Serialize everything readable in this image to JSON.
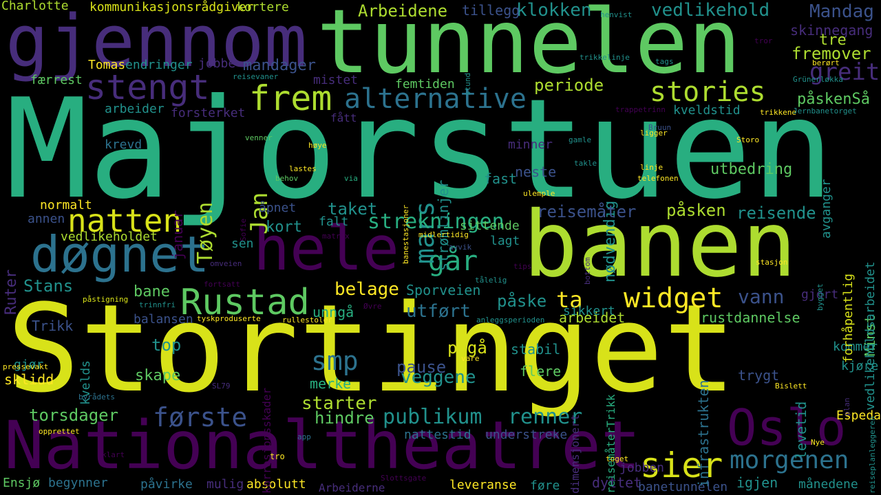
{
  "palette": {
    "purple": "#440154",
    "indigo": "#472d7b",
    "blue": "#3b528b",
    "slate": "#2c728e",
    "teal": "#21918c",
    "green": "#28ae80",
    "mint": "#5ec962",
    "lime": "#addc30",
    "yellow": "#d8e219",
    "gold": "#fde725"
  },
  "words": [
    {
      "id": "majorstuen",
      "text": "Majorstuen",
      "color": "green",
      "rot": 0
    },
    {
      "id": "stortinget",
      "text": "Stortinget",
      "color": "yellow",
      "rot": 0
    },
    {
      "id": "banen",
      "text": "banen",
      "color": "lime",
      "rot": 0
    },
    {
      "id": "tunnelen",
      "text": "tunnelen",
      "color": "mint",
      "rot": 0
    },
    {
      "id": "gjennom",
      "text": "gjennom",
      "color": "indigo",
      "rot": 0
    },
    {
      "id": "nationaltheatret",
      "text": "Nationaltheatret",
      "color": "purple",
      "rot": 0
    },
    {
      "id": "hele",
      "text": "hele",
      "color": "purple",
      "rot": 0
    },
    {
      "id": "dognet",
      "text": "døgnet",
      "color": "slate",
      "rot": 0
    },
    {
      "id": "oslo",
      "text": "Oslo",
      "color": "purple",
      "rot": 0
    },
    {
      "id": "rustad",
      "text": "Rustad",
      "color": "mint",
      "rot": 0
    },
    {
      "id": "stengt",
      "text": "stengt",
      "color": "indigo",
      "rot": 0
    },
    {
      "id": "frem",
      "text": "frem",
      "color": "lime",
      "rot": 0
    },
    {
      "id": "natten",
      "text": "natten",
      "color": "yellow",
      "rot": 0
    },
    {
      "id": "sier",
      "text": "sier",
      "color": "yellow",
      "rot": 0
    },
    {
      "id": "widget",
      "text": "widget",
      "color": "gold",
      "rot": 0
    },
    {
      "id": "alternative",
      "text": "alternative",
      "color": "slate",
      "rot": 0
    },
    {
      "id": "stories",
      "text": "stories",
      "color": "lime",
      "rot": 0
    },
    {
      "id": "gar",
      "text": "går",
      "color": "green",
      "rot": 0
    },
    {
      "id": "morgenen",
      "text": "morgenen",
      "color": "slate",
      "rot": 0
    },
    {
      "id": "forste",
      "text": "første",
      "color": "blue",
      "rot": 0
    },
    {
      "id": "smp",
      "text": "smp",
      "color": "slate",
      "rot": 0
    },
    {
      "id": "mars",
      "text": "mars",
      "color": "teal",
      "rot": -90
    },
    {
      "id": "ta",
      "text": "ta",
      "color": "gold",
      "rot": 0
    },
    {
      "id": "strekningen",
      "text": "strekningen",
      "color": "green",
      "rot": 0
    },
    {
      "id": "publikum",
      "text": "publikum",
      "color": "teal",
      "rot": 0
    },
    {
      "id": "renner",
      "text": "renner",
      "color": "teal",
      "rot": 0
    },
    {
      "id": "jan",
      "text": "Jan",
      "color": "lime",
      "rot": -90
    },
    {
      "id": "toyen",
      "text": "Tøyen",
      "color": "lime",
      "rot": -90
    },
    {
      "id": "greit",
      "text": "greit",
      "color": "indigo",
      "rot": 0
    },
    {
      "id": "arbeidene",
      "text": "Arbeidene",
      "color": "lime",
      "rot": 0
    },
    {
      "id": "klokken",
      "text": "klokken",
      "color": "teal",
      "rot": 0
    },
    {
      "id": "vedlikehold",
      "text": "vedlikehold",
      "color": "teal",
      "rot": 0
    },
    {
      "id": "mandag",
      "text": "Mandag",
      "color": "blue",
      "rot": 0
    },
    {
      "id": "fremover",
      "text": "fremover",
      "color": "lime",
      "rot": 0
    },
    {
      "id": "periode",
      "text": "periode",
      "color": "lime",
      "rot": 0
    },
    {
      "id": "paskensa",
      "text": "påskenSå",
      "color": "mint",
      "rot": 0
    },
    {
      "id": "mandager",
      "text": "mandager",
      "color": "blue",
      "rot": 0
    },
    {
      "id": "skinnegang",
      "text": "skinnegang",
      "color": "indigo",
      "rot": 0
    },
    {
      "id": "tre",
      "text": "tre",
      "color": "lime",
      "rot": 0
    },
    {
      "id": "charlotte",
      "text": "Charlotte",
      "color": "lime",
      "rot": 0
    },
    {
      "id": "kommunikasjon",
      "text": "kommunikasjonsrådgiver",
      "color": "yellow",
      "rot": 0
    },
    {
      "id": "kortere",
      "text": "kortere",
      "color": "lime",
      "rot": 0
    },
    {
      "id": "tillegg",
      "text": "tillegg",
      "color": "blue",
      "rot": 0
    },
    {
      "id": "tomas",
      "text": "Tomas",
      "color": "gold",
      "rot": 0
    },
    {
      "id": "endringer",
      "text": "endringer",
      "color": "teal",
      "rot": 0
    },
    {
      "id": "jobbe",
      "text": "jobbe",
      "color": "indigo",
      "rot": 0
    },
    {
      "id": "farrest",
      "text": "færrest",
      "color": "mint",
      "rot": 0
    },
    {
      "id": "mistet",
      "text": "mistet",
      "color": "indigo",
      "rot": 0
    },
    {
      "id": "femtiden",
      "text": "femtiden",
      "color": "mint",
      "rot": 0
    },
    {
      "id": "arbeider",
      "text": "arbeider",
      "color": "teal",
      "rot": 0
    },
    {
      "id": "forsterket",
      "text": "forsterket",
      "color": "indigo",
      "rot": 0
    },
    {
      "id": "fatt",
      "text": "fått",
      "color": "indigo",
      "rot": 0
    },
    {
      "id": "kveldstid",
      "text": "kveldstid",
      "color": "teal",
      "rot": 0
    },
    {
      "id": "krevd",
      "text": "krevd",
      "color": "slate",
      "rot": 0
    },
    {
      "id": "fast",
      "text": "fast",
      "color": "teal",
      "rot": 0
    },
    {
      "id": "neste",
      "text": "neste",
      "color": "blue",
      "rot": 0
    },
    {
      "id": "minner",
      "text": "minner",
      "color": "indigo",
      "rot": 0
    },
    {
      "id": "nodvendig",
      "text": "nødvendig",
      "color": "teal",
      "rot": -90
    },
    {
      "id": "stromlinjer",
      "text": "strømlinjer",
      "color": "teal",
      "rot": -90
    },
    {
      "id": "utbedring",
      "text": "utbedring",
      "color": "mint",
      "rot": 0
    },
    {
      "id": "avganger",
      "text": "avganger",
      "color": "teal",
      "rot": -90
    },
    {
      "id": "taket",
      "text": "taket",
      "color": "teal",
      "rot": 0
    },
    {
      "id": "apnet",
      "text": "åpnet",
      "color": "blue",
      "rot": 0
    },
    {
      "id": "normalt",
      "text": "normalt",
      "color": "gold",
      "rot": 0
    },
    {
      "id": "annen",
      "text": "annen",
      "color": "blue",
      "rot": 0
    },
    {
      "id": "kort",
      "text": "kort",
      "color": "teal",
      "rot": 0
    },
    {
      "id": "falt",
      "text": "falt",
      "color": "teal",
      "rot": 0
    },
    {
      "id": "sittende",
      "text": "sittende",
      "color": "mint",
      "rot": 0
    },
    {
      "id": "reisemater",
      "text": "reisemåter",
      "color": "blue",
      "rot": 0
    },
    {
      "id": "pasken",
      "text": "påsken",
      "color": "lime",
      "rot": 0
    },
    {
      "id": "reisende",
      "text": "reisende",
      "color": "teal",
      "rot": 0
    },
    {
      "id": "vedlikeholdet",
      "text": "vedlikeholdet",
      "color": "lime",
      "rot": 0
    },
    {
      "id": "sen",
      "text": "sen",
      "color": "teal",
      "rot": 0
    },
    {
      "id": "lagt",
      "text": "lagt",
      "color": "teal",
      "rot": 0
    },
    {
      "id": "ruter",
      "text": "Ruter",
      "color": "indigo",
      "rot": -90
    },
    {
      "id": "stans",
      "text": "Stans",
      "color": "teal",
      "rot": 0
    },
    {
      "id": "bane",
      "text": "bane",
      "color": "mint",
      "rot": 0
    },
    {
      "id": "belage",
      "text": "belage",
      "color": "gold",
      "rot": 0
    },
    {
      "id": "sporveien",
      "text": "Sporveien",
      "color": "teal",
      "rot": 0
    },
    {
      "id": "paske",
      "text": "påske",
      "color": "teal",
      "rot": 0
    },
    {
      "id": "vann",
      "text": "vann",
      "color": "blue",
      "rot": 0
    },
    {
      "id": "balansen",
      "text": "balansen",
      "color": "blue",
      "rot": 0
    },
    {
      "id": "unnga",
      "text": "unngå",
      "color": "green",
      "rot": 0
    },
    {
      "id": "utfort",
      "text": "utført",
      "color": "slate",
      "rot": 0
    },
    {
      "id": "sikkert",
      "text": "sikkert",
      "color": "teal",
      "rot": 0
    },
    {
      "id": "arbeidet",
      "text": "arbeidet",
      "color": "lime",
      "rot": 0
    },
    {
      "id": "rustdannelse",
      "text": "rustdannelse",
      "color": "mint",
      "rot": 0
    },
    {
      "id": "minst",
      "text": "Minst",
      "color": "mint",
      "rot": -90
    },
    {
      "id": "trikk",
      "text": "Trikk",
      "color": "blue",
      "rot": 0
    },
    {
      "id": "top",
      "text": "top",
      "color": "teal",
      "rot": 0
    },
    {
      "id": "paga",
      "text": "pågå",
      "color": "yellow",
      "rot": 0
    },
    {
      "id": "stabil",
      "text": "stabil",
      "color": "teal",
      "rot": 0
    },
    {
      "id": "pause",
      "text": "pause",
      "color": "blue",
      "rot": 0
    },
    {
      "id": "veggene",
      "text": "veggene",
      "color": "teal",
      "rot": 0
    },
    {
      "id": "skape",
      "text": "skape",
      "color": "mint",
      "rot": 0
    },
    {
      "id": "flere",
      "text": "flere",
      "color": "mint",
      "rot": 0
    },
    {
      "id": "starter",
      "text": "starter",
      "color": "lime",
      "rot": 0
    },
    {
      "id": "merke",
      "text": "merke",
      "color": "green",
      "rot": 0
    },
    {
      "id": "hindre",
      "text": "hindre",
      "color": "mint",
      "rot": 0
    },
    {
      "id": "torsdager",
      "text": "torsdager",
      "color": "mint",
      "rot": 0
    },
    {
      "id": "sklidd",
      "text": "sklidd",
      "color": "gold",
      "rot": 0
    },
    {
      "id": "gjor",
      "text": "gjør",
      "color": "teal",
      "rot": 0
    },
    {
      "id": "trygt",
      "text": "trygt",
      "color": "blue",
      "rot": 0
    },
    {
      "id": "kjore",
      "text": "kjøre",
      "color": "teal",
      "rot": 0
    },
    {
      "id": "kommer",
      "text": "kommer",
      "color": "teal",
      "rot": 0
    },
    {
      "id": "espedal",
      "text": "Espedal",
      "color": "gold",
      "rot": 0
    },
    {
      "id": "nattestid",
      "text": "nattestid",
      "color": "slate",
      "rot": 0
    },
    {
      "id": "understreke",
      "text": "understreke",
      "color": "blue",
      "rot": 0
    },
    {
      "id": "jobben",
      "text": "jobben",
      "color": "indigo",
      "rot": 0
    },
    {
      "id": "dyttet",
      "text": "dyttet",
      "color": "indigo",
      "rot": 0
    },
    {
      "id": "igjen",
      "text": "igjen",
      "color": "teal",
      "rot": 0
    },
    {
      "id": "manedene",
      "text": "månedene",
      "color": "teal",
      "rot": 0
    },
    {
      "id": "ensjo",
      "text": "Ensjø",
      "color": "mint",
      "rot": 0
    },
    {
      "id": "begynner",
      "text": "begynner",
      "color": "slate",
      "rot": 0
    },
    {
      "id": "pavirke",
      "text": "påvirke",
      "color": "slate",
      "rot": 0
    },
    {
      "id": "mulig",
      "text": "mulig",
      "color": "indigo",
      "rot": 0
    },
    {
      "id": "absolutt",
      "text": "absolutt",
      "color": "gold",
      "rot": 0
    },
    {
      "id": "arbeiderne",
      "text": "Arbeiderne",
      "color": "indigo",
      "rot": 0
    },
    {
      "id": "leveranse",
      "text": "leveranse",
      "color": "gold",
      "rot": 0
    },
    {
      "id": "fore",
      "text": "føre",
      "color": "teal",
      "rot": 0
    },
    {
      "id": "banetunnelen",
      "text": "banetunnelen",
      "color": "blue",
      "rot": 0
    },
    {
      "id": "gjort",
      "text": "gjort",
      "color": "indigo",
      "rot": 0
    },
    {
      "id": "levetid",
      "text": "levetid",
      "color": "teal",
      "rot": -90
    },
    {
      "id": "forhapentlig",
      "text": "forhåpentlig",
      "color": "yellow",
      "rot": -90
    },
    {
      "id": "vedlikeholdsarbeidet",
      "text": "vedlikeholdsarbeidet",
      "color": "teal",
      "rot": -90
    },
    {
      "id": "infrastrukten",
      "text": "infrastrukten",
      "color": "slate",
      "rot": -90
    },
    {
      "id": "reisematertrikk",
      "text": "reisemåterTrikk",
      "color": "green",
      "rot": -90
    },
    {
      "id": "dimensjonert",
      "text": "dimensjonert",
      "color": "indigo",
      "rot": -90
    },
    {
      "id": "korrosjonsskader",
      "text": "korrosjonsskader",
      "color": "purple",
      "rot": -90
    },
    {
      "id": "kvelds",
      "text": "kvelds",
      "color": "teal",
      "rot": -90
    },
    {
      "id": "januar",
      "text": "januar",
      "color": "purple",
      "rot": -90
    },
    {
      "id": "pressevakt",
      "text": "pressevakt",
      "color": "gold",
      "rot": 0
    },
    {
      "id": "opprettet",
      "text": "opprettet",
      "color": "gold",
      "rot": 0
    },
    {
      "id": "byradets",
      "text": "byrådets",
      "color": "slate",
      "rot": 0
    },
    {
      "id": "sl79",
      "text": "SL79",
      "color": "indigo",
      "rot": 0
    },
    {
      "id": "klart",
      "text": "klart",
      "color": "purple",
      "rot": 0
    },
    {
      "id": "app",
      "text": "app",
      "color": "slate",
      "rot": 0
    },
    {
      "id": "tro",
      "text": "tro",
      "color": "gold",
      "rot": 0
    },
    {
      "id": "toget",
      "text": "toget",
      "color": "gold",
      "rot": 0
    },
    {
      "id": "nye",
      "text": "Nye",
      "color": "gold",
      "rot": 0
    },
    {
      "id": "slottsgate",
      "text": "Slottsgate",
      "color": "purple",
      "rot": 0
    },
    {
      "id": "reiseplanleggeren",
      "text": "reiseplanleggeren",
      "color": "teal",
      "rot": -90
    },
    {
      "id": "plan",
      "text": "plan",
      "color": "indigo",
      "rot": -90
    },
    {
      "id": "bislett",
      "text": "Bislett",
      "color": "gold",
      "rot": 0
    },
    {
      "id": "vare",
      "text": "vare",
      "color": "gold",
      "rot": 0
    },
    {
      "id": "anleggsperioden",
      "text": "anleggsperioden",
      "color": "teal",
      "rot": 0
    },
    {
      "id": "rullestoler",
      "text": "rullestoler",
      "color": "gold",
      "rot": 0
    },
    {
      "id": "ovre",
      "text": "Øvre",
      "color": "purple",
      "rot": 0
    },
    {
      "id": "tyskproduserte",
      "text": "tyskproduserte",
      "color": "gold",
      "rot": 0
    },
    {
      "id": "trinnfri",
      "text": "trinnfri",
      "color": "teal",
      "rot": 0
    },
    {
      "id": "pastigning",
      "text": "påstigning",
      "color": "yellow",
      "rot": 0
    },
    {
      "id": "fortsatt",
      "text": "fortsatt",
      "color": "purple",
      "rot": 0
    },
    {
      "id": "omveien",
      "text": "omveien",
      "color": "indigo",
      "rot": 0
    },
    {
      "id": "matrix",
      "text": "matrix",
      "color": "purple",
      "rot": 0
    },
    {
      "id": "sofie",
      "text": "Sofie",
      "color": "purple",
      "rot": -90
    },
    {
      "id": "midlertidig",
      "text": "midlertidig",
      "color": "gold",
      "rot": 0
    },
    {
      "id": "avvik",
      "text": "avvik",
      "color": "blue",
      "rot": 0
    },
    {
      "id": "tips",
      "text": "tips",
      "color": "purple",
      "rot": 0
    },
    {
      "id": "talelig",
      "text": "tålelig",
      "color": "teal",
      "rot": 0
    },
    {
      "id": "bottom",
      "text": "bottom",
      "color": "indigo",
      "rot": -90
    },
    {
      "id": "stasjon",
      "text": "stasjon",
      "color": "gold",
      "rot": 0
    },
    {
      "id": "bygget",
      "text": "bygget",
      "color": "teal",
      "rot": -90
    },
    {
      "id": "ulemple",
      "text": "ulemple",
      "color": "gold",
      "rot": 0
    },
    {
      "id": "banestasjoner",
      "text": "banestasjoner",
      "color": "gold",
      "rot": -90
    },
    {
      "id": "via",
      "text": "via",
      "color": "green",
      "rot": 0
    },
    {
      "id": "lastes",
      "text": "lastes",
      "color": "gold",
      "rot": 0
    },
    {
      "id": "behov",
      "text": "behov",
      "color": "mint",
      "rot": 0
    },
    {
      "id": "hoye",
      "text": "høye",
      "color": "gold",
      "rot": 0
    },
    {
      "id": "venner",
      "text": "venner",
      "color": "mint",
      "rot": 0
    },
    {
      "id": "takle",
      "text": "takle",
      "color": "teal",
      "rot": 0
    },
    {
      "id": "linje",
      "text": "linje",
      "color": "gold",
      "rot": 0
    },
    {
      "id": "telefonen",
      "text": "telefonen",
      "color": "gold",
      "rot": 0
    },
    {
      "id": "gamle",
      "text": "gamle",
      "color": "teal",
      "rot": 0
    },
    {
      "id": "storo",
      "text": "Storo",
      "color": "gold",
      "rot": 0
    },
    {
      "id": "ligger",
      "text": "ligger",
      "color": "gold",
      "rot": 0
    },
    {
      "id": "bruun",
      "text": "Bruun",
      "color": "blue",
      "rot": 0
    },
    {
      "id": "trikkene",
      "text": "trikkene",
      "color": "gold",
      "rot": 0
    },
    {
      "id": "jernbanetorget",
      "text": "Jernbanetorget",
      "color": "teal",
      "rot": 0
    },
    {
      "id": "trappetrinn",
      "text": "trappetrinn",
      "color": "purple",
      "rot": 0
    },
    {
      "id": "grunerlokka",
      "text": "Grünerløkka",
      "color": "teal",
      "rot": 0
    },
    {
      "id": "reisevaner",
      "text": "reisevaner",
      "color": "teal",
      "rot": 0
    },
    {
      "id": "stund",
      "text": "stund",
      "color": "teal",
      "rot": -90
    },
    {
      "id": "trikkelinje",
      "text": "trikkelinje",
      "color": "teal",
      "rot": 0
    },
    {
      "id": "tags",
      "text": "tags",
      "color": "teal",
      "rot": 0
    },
    {
      "id": "berort",
      "text": "berørt",
      "color": "gold",
      "rot": 0
    },
    {
      "id": "tror",
      "text": "tror",
      "color": "purple",
      "rot": 0
    },
    {
      "id": "henvist",
      "text": "henvist",
      "color": "teal",
      "rot": 0
    }
  ]
}
